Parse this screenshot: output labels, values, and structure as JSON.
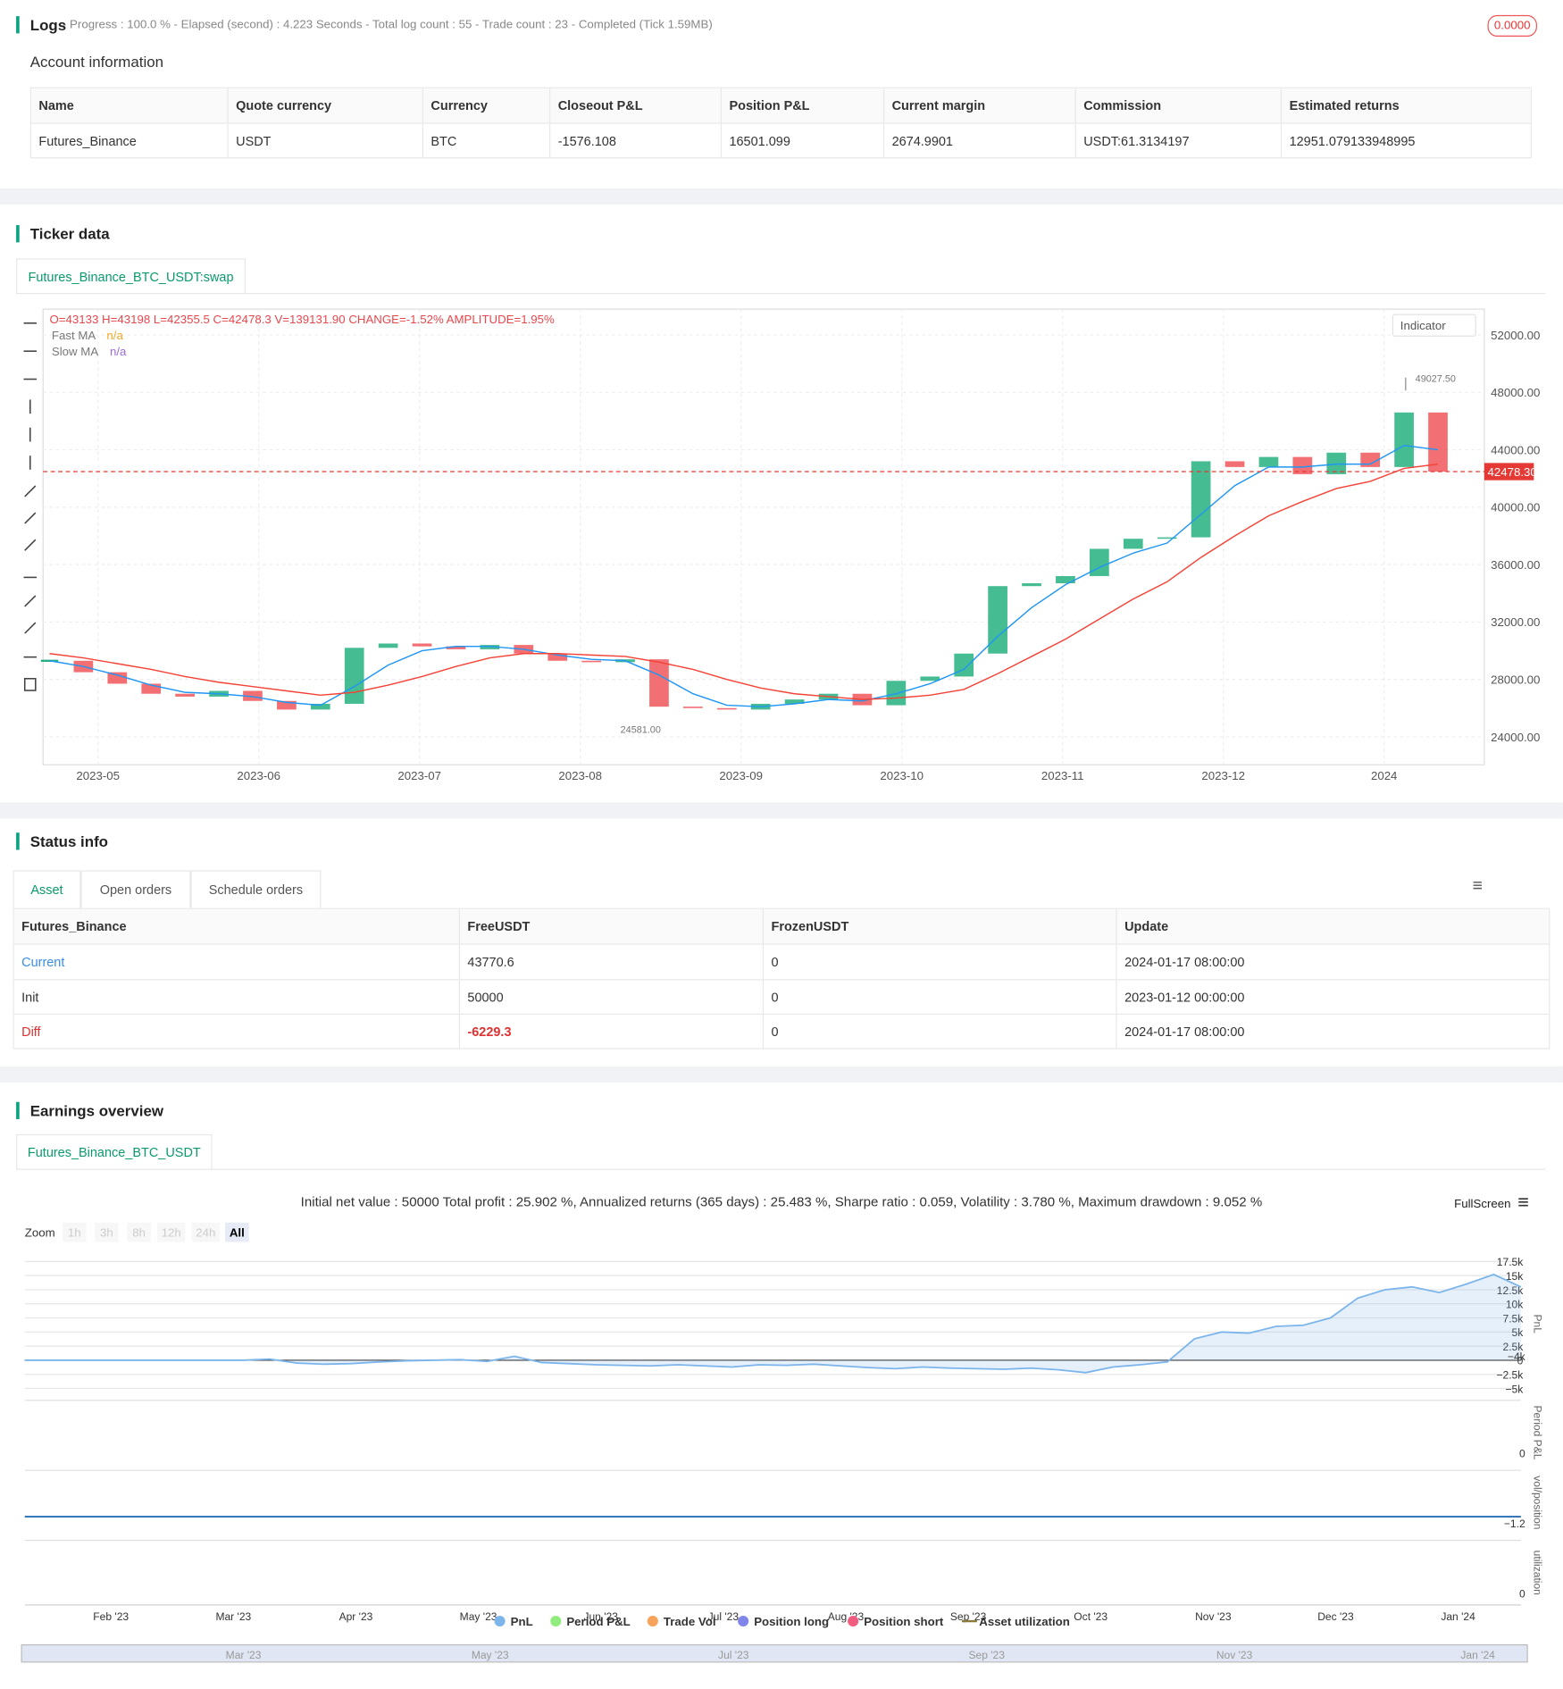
{
  "logs": {
    "title": "Logs",
    "summary": "- Progress : 100.0 % - Elapsed (second) : 4.223 Seconds - Total log count : 55 - Trade count : 23 - Completed (Tick 1.59MB)",
    "badge": "0.0000"
  },
  "account": {
    "title": "Account information",
    "columns": [
      "Name",
      "Quote currency",
      "Currency",
      "Closeout P&L",
      "Position P&L",
      "Current margin",
      "Commission",
      "Estimated returns"
    ],
    "rows": [
      [
        "Futures_Binance",
        "USDT",
        "BTC",
        "-1576.108",
        "16501.099",
        "2674.9901",
        "USDT:61.3134197",
        "12951.079133948995"
      ]
    ]
  },
  "ticker": {
    "title": "Ticker data",
    "tab": "Futures_Binance_BTC_USDT:swap",
    "ohlc": "O=43133 H=43198 L=42355.5 C=42478.3 V=139131.90 CHANGE=-1.52% AMPLITUDE=1.95%",
    "legend": [
      {
        "name": "Fast MA",
        "value": "n/a"
      },
      {
        "name": "Slow MA",
        "value": "n/a"
      }
    ],
    "indicator": "Indicator",
    "chart": {
      "type": "candlestick",
      "ylim": [
        22050,
        53800
      ],
      "yticks": [
        {
          "value": 24000,
          "label": "24000.00"
        },
        {
          "value": 28000,
          "label": "28000.00"
        },
        {
          "value": 32000,
          "label": "32000.00"
        },
        {
          "value": 36000,
          "label": "36000.00"
        },
        {
          "value": 40000,
          "label": "40000.00"
        },
        {
          "value": 44000,
          "label": "44000.00"
        },
        {
          "value": 48000,
          "label": "48000.00"
        },
        {
          "value": 52000,
          "label": "52000.00"
        }
      ],
      "categories": [
        "2023-05",
        "2023-06",
        "2023-07",
        "2023-08",
        "2023-09",
        "2023-10",
        "2023-11",
        "2023-12",
        "2024"
      ],
      "closes": [
        29300,
        28500,
        27700,
        27000,
        26800,
        27200,
        26500,
        25900,
        26300,
        30200,
        30500,
        30300,
        30100,
        30400,
        29800,
        29300,
        29200,
        29400,
        26100,
        26000,
        25900,
        26300,
        26600,
        27000,
        26200,
        27900,
        28200,
        29800,
        34500,
        34700,
        35200,
        37100,
        37800,
        37900,
        43200,
        42800,
        43500,
        42300,
        43800,
        42800,
        46600,
        42478
      ],
      "series": [
        {
          "name": "Fast MA",
          "color": "#2196f3",
          "values": [
            29300,
            28900,
            28300,
            27600,
            27100,
            27000,
            26800,
            26400,
            26200,
            27500,
            29000,
            30000,
            30300,
            30300,
            30100,
            29700,
            29400,
            29300,
            28300,
            27000,
            26200,
            26100,
            26300,
            26600,
            26500,
            27000,
            27700,
            28700,
            31000,
            33000,
            34600,
            35800,
            36800,
            37500,
            39500,
            41500,
            42800,
            42800,
            43000,
            43000,
            44300,
            44000
          ]
        },
        {
          "name": "Slow MA",
          "color": "#f44336",
          "values": [
            29800,
            29500,
            29100,
            28700,
            28200,
            27800,
            27500,
            27200,
            26900,
            27100,
            27600,
            28200,
            28900,
            29500,
            29800,
            29800,
            29700,
            29600,
            29200,
            28700,
            28000,
            27400,
            27000,
            26800,
            26600,
            26700,
            26900,
            27300,
            28400,
            29600,
            30800,
            32200,
            33600,
            34800,
            36500,
            38000,
            39400,
            40400,
            41300,
            41800,
            42700,
            43000
          ]
        }
      ],
      "last_price": {
        "value": 42478.3,
        "label": "42478.30"
      },
      "high_label": {
        "value": 49027.5,
        "label": "49027.50"
      },
      "low_label": {
        "value": 24581,
        "label": "24581.00"
      },
      "up_color": "#26b07f",
      "down_color": "#f0565a"
    }
  },
  "status": {
    "title": "Status info",
    "tabs": [
      "Asset",
      "Open orders",
      "Schedule orders"
    ],
    "columns": [
      "Futures_Binance",
      "FreeUSDT",
      "FrozenUSDT",
      "Update"
    ],
    "rows": [
      [
        "Current",
        "43770.6",
        "0",
        "2024-01-17 08:00:00"
      ],
      [
        "Init",
        "50000",
        "0",
        "2023-01-12 00:00:00"
      ],
      [
        "Diff",
        "-6229.3",
        "0",
        "2024-01-17 08:00:00"
      ]
    ]
  },
  "earnings": {
    "title": "Earnings overview",
    "tab": "Futures_Binance_BTC_USDT",
    "summary": "Initial net value : 50000 Total profit : 25.902 %, Annualized returns (365 days) : 25.483 %, Sharpe ratio : 0.059, Volatility : 3.780 %, Maximum drawdown : 9.052 %",
    "fullscreen": "FullScreen",
    "zoom": {
      "label": "Zoom",
      "buttons": [
        "1h",
        "3h",
        "8h",
        "12h",
        "24h",
        "All"
      ]
    },
    "chart": {
      "type": "area",
      "ylim": [
        -6150,
        19050
      ],
      "yticks": [
        {
          "value": -5000,
          "label": "−5k"
        },
        {
          "value": -2500,
          "label": "−2.5k"
        },
        0,
        {
          "value": 2500,
          "label": "2.5k"
        },
        {
          "value": 5000,
          "label": "5k"
        },
        {
          "value": 7500,
          "label": "7.5k"
        },
        {
          "value": 10000,
          "label": "10k"
        },
        {
          "value": 12500,
          "label": "12.5k"
        },
        {
          "value": 15000,
          "label": "15k"
        },
        {
          "value": 17500,
          "label": "17.5k"
        }
      ],
      "categories": [
        "Feb '23",
        "Mar '23",
        "Apr '23",
        "May '23",
        "Jun '23",
        "Jul '23",
        "Aug '23",
        "Sep '23",
        "Oct '23",
        "Nov '23",
        "Dec '23",
        "Jan '24"
      ],
      "series": [
        {
          "name": "PnL",
          "color": "#7cb5ec",
          "values": [
            0,
            0,
            0,
            0,
            0,
            0,
            0,
            0,
            0,
            200,
            -500,
            -700,
            -600,
            -300,
            -100,
            0,
            100,
            -200,
            700,
            -400,
            -600,
            -800,
            -900,
            -1000,
            -800,
            -1000,
            -1200,
            -800,
            -900,
            -700,
            -1000,
            -1300,
            -1500,
            -1200,
            -1400,
            -1500,
            -1600,
            -1400,
            -1700,
            -2200,
            -1200,
            -800,
            -300,
            3800,
            5000,
            4800,
            6000,
            6200,
            7500,
            11000,
            12500,
            13000,
            12000,
            13500,
            15200,
            13000
          ]
        },
        {
          "name": "Period P&L",
          "color": "#90ed7d"
        },
        {
          "name": "Trade Vol",
          "color": "#f7a35c"
        },
        {
          "name": "Position long",
          "color": "#8085e9"
        },
        {
          "name": "Position short",
          "color": "#f15c80"
        },
        {
          "name": "Asset utilization",
          "color": "#8d7b3c"
        }
      ],
      "panels": [
        "PnL",
        "Period P&L",
        "vol/position",
        "utilization"
      ],
      "panel_ticks": [
        {
          "value": -4000,
          "label": "−4k"
        },
        0,
        {
          "value": -1.2,
          "label": "−1.2"
        },
        0
      ],
      "navigator": [
        "Mar '23",
        "May '23",
        "Jul '23",
        "Sep '23",
        "Nov '23",
        "Jan '24"
      ]
    }
  }
}
